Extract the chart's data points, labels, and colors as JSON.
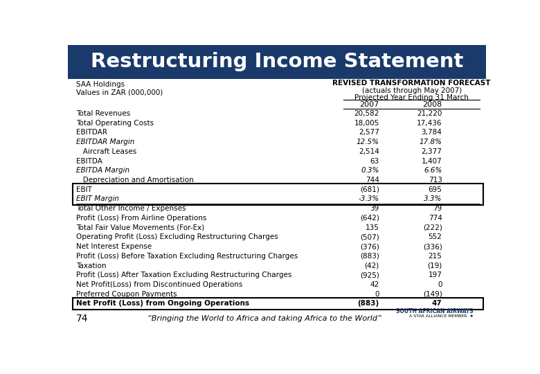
{
  "title": "Restructuring Income Statement",
  "title_bg_color": "#1a3a6b",
  "title_text_color": "#ffffff",
  "header_left_line1": "SAA Holdings",
  "header_left_line2": "Values in ZAR (000,000)",
  "header_right_line1": "REVISED TRANSFORMATION FORECAST",
  "header_right_line2": "(actuals through May 2007)",
  "header_right_line3": "Projected Year Ending 31 March",
  "col_years": [
    "2007",
    "2008"
  ],
  "rows": [
    {
      "label": "Total Revenues",
      "val2007": "20,582",
      "val2008": "21,220",
      "bold": false,
      "italic": false,
      "indent": false,
      "boxed": false,
      "box_start": false,
      "separator_above": false
    },
    {
      "label": "Total Operating Costs",
      "val2007": "18,005",
      "val2008": "17,436",
      "bold": false,
      "italic": false,
      "indent": false,
      "boxed": false,
      "box_start": false,
      "separator_above": false
    },
    {
      "label": "EBITDAR",
      "val2007": "2,577",
      "val2008": "3,784",
      "bold": false,
      "italic": false,
      "indent": false,
      "boxed": false,
      "box_start": false,
      "separator_above": false
    },
    {
      "label": "EBITDAR Margin",
      "val2007": "12.5%",
      "val2008": "17.8%",
      "bold": false,
      "italic": true,
      "indent": false,
      "boxed": false,
      "box_start": false,
      "separator_above": false
    },
    {
      "label": "   Aircraft Leases",
      "val2007": "2,514",
      "val2008": "2,377",
      "bold": false,
      "italic": false,
      "indent": false,
      "boxed": false,
      "box_start": false,
      "separator_above": false
    },
    {
      "label": "EBITDA",
      "val2007": "63",
      "val2008": "1,407",
      "bold": false,
      "italic": false,
      "indent": false,
      "boxed": false,
      "box_start": false,
      "separator_above": false
    },
    {
      "label": "EBITDA Margin",
      "val2007": "0.3%",
      "val2008": "6.6%",
      "bold": false,
      "italic": true,
      "indent": false,
      "boxed": false,
      "box_start": false,
      "separator_above": false
    },
    {
      "label": "   Depreciation and Amortisation",
      "val2007": "744",
      "val2008": "713",
      "bold": false,
      "italic": false,
      "indent": false,
      "boxed": false,
      "box_start": false,
      "separator_above": false
    },
    {
      "label": "EBIT",
      "val2007": "(681)",
      "val2008": "695",
      "bold": false,
      "italic": false,
      "indent": false,
      "boxed": true,
      "box_start": true,
      "separator_above": false
    },
    {
      "label": "EBIT Margin",
      "val2007": "-3.3%",
      "val2008": "3.3%",
      "bold": false,
      "italic": true,
      "indent": false,
      "boxed": true,
      "box_start": false,
      "separator_above": false
    },
    {
      "label": "Total Other Income / Expenses",
      "val2007": "39",
      "val2008": "79",
      "bold": false,
      "italic": false,
      "indent": false,
      "boxed": false,
      "box_start": false,
      "separator_above": true
    },
    {
      "label": "Profit (Loss) From Airline Operations",
      "val2007": "(642)",
      "val2008": "774",
      "bold": false,
      "italic": false,
      "indent": false,
      "boxed": false,
      "box_start": false,
      "separator_above": false
    },
    {
      "label": "Total Fair Value Movements (For-Ex)",
      "val2007": "135",
      "val2008": "(222)",
      "bold": false,
      "italic": false,
      "indent": false,
      "boxed": false,
      "box_start": false,
      "separator_above": false
    },
    {
      "label": "Operating Profit (Loss) Excluding Restructuring Charges",
      "val2007": "(507)",
      "val2008": "552",
      "bold": false,
      "italic": false,
      "indent": false,
      "boxed": false,
      "box_start": false,
      "separator_above": false
    },
    {
      "label": "Net Interest Expense",
      "val2007": "(376)",
      "val2008": "(336)",
      "bold": false,
      "italic": false,
      "indent": false,
      "boxed": false,
      "box_start": false,
      "separator_above": false
    },
    {
      "label": "Profit (Loss) Before Taxation Excluding Restructuring Charges",
      "val2007": "(883)",
      "val2008": "215",
      "bold": false,
      "italic": false,
      "indent": false,
      "boxed": false,
      "box_start": false,
      "separator_above": false
    },
    {
      "label": "Taxation",
      "val2007": "(42)",
      "val2008": "(19)",
      "bold": false,
      "italic": false,
      "indent": false,
      "boxed": false,
      "box_start": false,
      "separator_above": false
    },
    {
      "label": "Profit (Loss) After Taxation Excluding Restructuring Charges",
      "val2007": "(925)",
      "val2008": "197",
      "bold": false,
      "italic": false,
      "indent": false,
      "boxed": false,
      "box_start": false,
      "separator_above": false
    },
    {
      "label": "Net Profit(Loss) from Discontinued Operations",
      "val2007": "42",
      "val2008": "0",
      "bold": false,
      "italic": false,
      "indent": false,
      "boxed": false,
      "box_start": false,
      "separator_above": false
    },
    {
      "label": "Preferred Coupon Payments",
      "val2007": "0",
      "val2008": "(149)",
      "bold": false,
      "italic": false,
      "indent": false,
      "boxed": false,
      "box_start": false,
      "separator_above": false
    },
    {
      "label": "Net Profit (Loss) from Ongoing Operations",
      "val2007": "(883)",
      "val2008": "47",
      "bold": true,
      "italic": false,
      "indent": false,
      "boxed": true,
      "box_start": true,
      "separator_above": false
    }
  ],
  "footer_number": "74",
  "footer_text": "“Bringing the World to Africa and taking Africa to the World”",
  "bg_color": "#ffffff",
  "text_color": "#000000",
  "box_color": "#000000",
  "separator_color": "#000000"
}
